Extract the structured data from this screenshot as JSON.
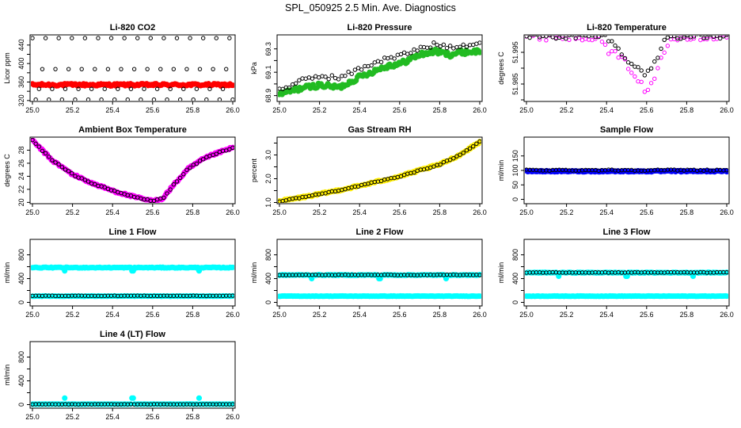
{
  "figure_title": "SPL_050925  2.5 Min. Ave. Diagnostics",
  "colors": {
    "red": "#ff0000",
    "green": "#22bb22",
    "magenta": "#ff00ff",
    "black": "#000000",
    "yellow": "#ffee00",
    "blue": "#0000ff",
    "cyan": "#00ffff"
  },
  "chart_data": [
    {
      "title": "Li-820 CO2",
      "type": "scatter",
      "ylabel": "Licor ppm",
      "xlim": [
        25.0,
        26.0
      ],
      "ylim": [
        318,
        462
      ],
      "yticks": [
        320,
        340,
        360,
        380,
        400,
        420,
        440
      ],
      "ytick_labels": [
        "320",
        "",
        "360",
        "",
        "400",
        "",
        "440"
      ],
      "series": [
        {
          "name": "primary",
          "color": "red",
          "marker": "fill",
          "pattern": "flat",
          "base": 354,
          "noise": 2.5
        },
        {
          "name": "comparison",
          "color": "black",
          "marker": "ring",
          "pattern": "cycle",
          "levels": [
            455,
            322,
            345,
            388,
            455,
            322,
            345,
            388
          ]
        }
      ]
    },
    {
      "title": "Li-820 Pressure",
      "type": "scatter",
      "ylabel": "kPa",
      "xlim": [
        25.0,
        26.0
      ],
      "ylim": [
        68.85,
        69.42
      ],
      "yticks": [
        68.9,
        69.0,
        69.1,
        69.2,
        69.3
      ],
      "ytick_labels": [
        "68.9",
        "",
        "69.1",
        "",
        "69.3"
      ],
      "series": [
        {
          "name": "primary",
          "color": "green",
          "marker": "fill",
          "pattern": "interp",
          "keys": [
            [
              25.0,
              68.91
            ],
            [
              25.1,
              68.96
            ],
            [
              25.2,
              68.99
            ],
            [
              25.3,
              68.97
            ],
            [
              25.4,
              69.06
            ],
            [
              25.5,
              69.13
            ],
            [
              25.55,
              69.16
            ],
            [
              25.6,
              69.17
            ],
            [
              25.7,
              69.25
            ],
            [
              25.78,
              69.28
            ],
            [
              25.85,
              69.25
            ],
            [
              25.9,
              69.27
            ],
            [
              26.0,
              69.28
            ]
          ],
          "noise": 0.02
        },
        {
          "name": "comparison",
          "color": "black",
          "marker": "ring",
          "pattern": "interp",
          "keys": [
            [
              25.0,
              68.95
            ],
            [
              25.1,
              69.02
            ],
            [
              25.2,
              69.07
            ],
            [
              25.3,
              69.05
            ],
            [
              25.4,
              69.13
            ],
            [
              25.5,
              69.2
            ],
            [
              25.6,
              69.24
            ],
            [
              25.7,
              69.3
            ],
            [
              25.78,
              69.34
            ],
            [
              25.85,
              69.32
            ],
            [
              25.9,
              69.33
            ],
            [
              26.0,
              69.35
            ]
          ],
          "noise": 0.02
        }
      ]
    },
    {
      "title": "Li-820 Temperature",
      "type": "scatter",
      "ylabel": "degrees C",
      "xlim": [
        25.0,
        26.0
      ],
      "ylim": [
        51.9795,
        52.0005
      ],
      "yticks": [
        51.98,
        51.985,
        51.99,
        51.995
      ],
      "ytick_labels": [
        "",
        "51.985",
        "",
        "51.995"
      ],
      "series": [
        {
          "name": "primary",
          "color": "magenta",
          "marker": "ring",
          "pattern": "interp",
          "keys": [
            [
              25.0,
              52.0
            ],
            [
              25.35,
              52.0
            ],
            [
              25.4,
              51.996
            ],
            [
              25.47,
              51.993
            ],
            [
              25.52,
              51.99
            ],
            [
              25.57,
              51.985
            ],
            [
              25.6,
              51.982
            ],
            [
              25.64,
              51.987
            ],
            [
              25.68,
              51.995
            ],
            [
              25.72,
              52.0
            ],
            [
              26.0,
              52.0
            ]
          ],
          "noise": 0.0012
        },
        {
          "name": "comparison",
          "color": "black",
          "marker": "ring",
          "pattern": "interp",
          "keys": [
            [
              25.0,
              52.0
            ],
            [
              25.4,
              52.0
            ],
            [
              25.47,
              51.995
            ],
            [
              25.55,
              51.99
            ],
            [
              25.6,
              51.988
            ],
            [
              25.65,
              51.993
            ],
            [
              25.7,
              52.0
            ],
            [
              26.0,
              52.0
            ]
          ],
          "noise": 0.0008
        }
      ]
    },
    {
      "title": "Ambient Box Temperature",
      "type": "scatter",
      "ylabel": "degrees C",
      "xlim": [
        25.0,
        26.0
      ],
      "ylim": [
        19.8,
        30.0
      ],
      "yticks": [
        20,
        22,
        24,
        26,
        28
      ],
      "ytick_labels": [
        "20",
        "22",
        "24",
        "26",
        "28"
      ],
      "series": [
        {
          "name": "primary",
          "color": "magenta",
          "marker": "fill",
          "pattern": "interp",
          "keys": [
            [
              25.0,
              29.5
            ],
            [
              25.1,
              26.4
            ],
            [
              25.2,
              24.3
            ],
            [
              25.3,
              22.9
            ],
            [
              25.4,
              21.8
            ],
            [
              25.5,
              20.9
            ],
            [
              25.6,
              20.2
            ],
            [
              25.65,
              20.6
            ],
            [
              25.7,
              22.5
            ],
            [
              25.78,
              25.2
            ],
            [
              25.85,
              26.6
            ],
            [
              25.9,
              27.3
            ],
            [
              26.0,
              28.4
            ]
          ],
          "noise": 0.15
        },
        {
          "name": "comparison",
          "color": "black",
          "marker": "ring",
          "pattern": "interp",
          "keys": [
            [
              25.0,
              29.5
            ],
            [
              25.1,
              26.4
            ],
            [
              25.2,
              24.3
            ],
            [
              25.3,
              22.9
            ],
            [
              25.4,
              21.8
            ],
            [
              25.5,
              20.9
            ],
            [
              25.6,
              20.2
            ],
            [
              25.65,
              20.6
            ],
            [
              25.7,
              22.5
            ],
            [
              25.78,
              25.2
            ],
            [
              25.85,
              26.6
            ],
            [
              25.9,
              27.3
            ],
            [
              26.0,
              28.4
            ]
          ],
          "noise": 0.1
        }
      ]
    },
    {
      "title": "Gas Stream RH",
      "type": "scatter",
      "ylabel": "percent",
      "xlim": [
        25.0,
        26.0
      ],
      "ylim": [
        0.95,
        3.75
      ],
      "yticks": [
        1.0,
        1.5,
        2.0,
        2.5,
        3.0,
        3.5
      ],
      "ytick_labels": [
        "1.0",
        "",
        "2.0",
        "",
        "3.0",
        ""
      ],
      "series": [
        {
          "name": "primary",
          "color": "yellow",
          "marker": "fill",
          "pattern": "interp",
          "keys": [
            [
              25.0,
              1.05
            ],
            [
              25.2,
              1.35
            ],
            [
              25.4,
              1.7
            ],
            [
              25.6,
              2.1
            ],
            [
              25.8,
              2.6
            ],
            [
              25.9,
              3.0
            ],
            [
              26.0,
              3.55
            ]
          ],
          "noise": 0.04
        },
        {
          "name": "comparison",
          "color": "black",
          "marker": "ring",
          "pattern": "interp",
          "keys": [
            [
              25.0,
              1.05
            ],
            [
              25.2,
              1.35
            ],
            [
              25.4,
              1.7
            ],
            [
              25.6,
              2.1
            ],
            [
              25.8,
              2.6
            ],
            [
              25.9,
              3.0
            ],
            [
              26.0,
              3.55
            ]
          ],
          "noise": 0.02
        }
      ]
    },
    {
      "title": "Sample Flow",
      "type": "scatter",
      "ylabel": "ml/min",
      "xlim": [
        25.0,
        26.0
      ],
      "ylim": [
        -15,
        215
      ],
      "yticks": [
        0,
        50,
        100,
        150
      ],
      "ytick_labels": [
        "0",
        "50",
        "100",
        "150"
      ],
      "series": [
        {
          "name": "primary",
          "color": "blue",
          "marker": "fill",
          "pattern": "flat",
          "base": 97,
          "noise": 2
        },
        {
          "name": "comparison",
          "color": "black",
          "marker": "ring",
          "pattern": "flat",
          "base": 101,
          "noise": 2
        }
      ]
    },
    {
      "title": "Line 1 Flow",
      "type": "scatter",
      "ylabel": "ml/min",
      "xlim": [
        25.0,
        26.0
      ],
      "ylim": [
        -60,
        1060
      ],
      "yticks": [
        0,
        200,
        400,
        600,
        800
      ],
      "ytick_labels": [
        "0",
        "",
        "400",
        "",
        "800"
      ],
      "series": [
        {
          "name": "flow-high",
          "color": "cyan",
          "marker": "fill",
          "pattern": "flat",
          "base": 585,
          "noise": 6,
          "dips": [
            25.16,
            25.5,
            25.83
          ],
          "dip_value": 530
        },
        {
          "name": "flow-low",
          "color": "cyan",
          "marker": "fill",
          "pattern": "flat",
          "base": 105,
          "noise": 3
        },
        {
          "name": "comparison",
          "color": "black",
          "marker": "ring",
          "pattern": "flat",
          "base": 110,
          "noise": 3
        }
      ]
    },
    {
      "title": "Line 2 Flow",
      "type": "scatter",
      "ylabel": "ml/min",
      "xlim": [
        25.0,
        26.0
      ],
      "ylim": [
        -60,
        1060
      ],
      "yticks": [
        0,
        200,
        400,
        600,
        800
      ],
      "ytick_labels": [
        "0",
        "",
        "400",
        "",
        "800"
      ],
      "series": [
        {
          "name": "flow-high",
          "color": "cyan",
          "marker": "fill",
          "pattern": "flat",
          "base": 460,
          "noise": 6,
          "dips": [
            25.16,
            25.5,
            25.83
          ],
          "dip_value": 400
        },
        {
          "name": "flow-low",
          "color": "cyan",
          "marker": "fill",
          "pattern": "flat",
          "base": 105,
          "noise": 3
        },
        {
          "name": "comparison",
          "color": "black",
          "marker": "ring",
          "pattern": "flat",
          "base": 462,
          "noise": 4
        }
      ]
    },
    {
      "title": "Line 3 Flow",
      "type": "scatter",
      "ylabel": "ml/min",
      "xlim": [
        25.0,
        26.0
      ],
      "ylim": [
        -60,
        1060
      ],
      "yticks": [
        0,
        200,
        400,
        600,
        800
      ],
      "ytick_labels": [
        "0",
        "",
        "400",
        "",
        "800"
      ],
      "series": [
        {
          "name": "flow-high",
          "color": "cyan",
          "marker": "fill",
          "pattern": "flat",
          "base": 500,
          "noise": 6,
          "dips": [
            25.16,
            25.5,
            25.83
          ],
          "dip_value": 440
        },
        {
          "name": "flow-low",
          "color": "cyan",
          "marker": "fill",
          "pattern": "flat",
          "base": 105,
          "noise": 3
        },
        {
          "name": "comparison",
          "color": "black",
          "marker": "ring",
          "pattern": "flat",
          "base": 503,
          "noise": 4
        }
      ]
    },
    {
      "title": "Line 4 (LT) Flow",
      "type": "scatter",
      "ylabel": "ml/min",
      "xlim": [
        25.0,
        26.0
      ],
      "ylim": [
        -60,
        1060
      ],
      "yticks": [
        0,
        200,
        400,
        600,
        800
      ],
      "ytick_labels": [
        "0",
        "",
        "400",
        "",
        "800"
      ],
      "series": [
        {
          "name": "flow",
          "color": "cyan",
          "marker": "fill",
          "pattern": "flat",
          "base": 8,
          "noise": 2,
          "spikes": [
            25.16,
            25.5,
            25.83
          ],
          "spike_value": 110
        },
        {
          "name": "comparison",
          "color": "black",
          "marker": "ring",
          "pattern": "flat",
          "base": 6,
          "noise": 2
        }
      ]
    }
  ],
  "x_ticks": [
    25.0,
    25.2,
    25.4,
    25.6,
    25.8,
    26.0
  ],
  "x_tick_labels": [
    "25.0",
    "25.2",
    "25.4",
    "25.6",
    "25.8",
    "26.0"
  ]
}
